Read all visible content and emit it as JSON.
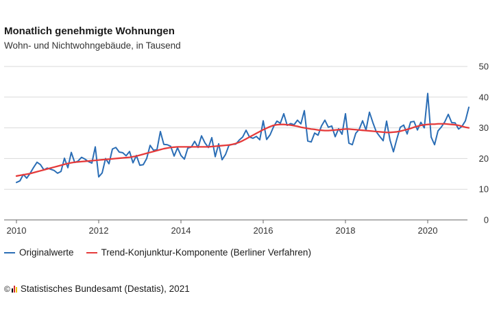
{
  "header": {
    "title": "Monatlich genehmigte Wohnungen",
    "subtitle": "Wohn- und Nichtwohngebäude, in Tausend"
  },
  "legend": {
    "items": [
      {
        "label": "Originalwerte",
        "color": "#2a6db5"
      },
      {
        "label": "Trend-Konjunktur-Komponente (Berliner Verfahren)",
        "color": "#e53a3a"
      }
    ]
  },
  "source": {
    "copyright": "©",
    "text": "Statistisches Bundesamt (Destatis), 2021",
    "logo_colors": [
      "#000000",
      "#d62b2b",
      "#f0c400"
    ]
  },
  "chart_data": {
    "type": "line",
    "title": "Monatlich genehmigte Wohnungen",
    "subtitle": "Wohn- und Nichtwohngebäude, in Tausend",
    "xlabel": "",
    "ylabel": "",
    "xlim": [
      2009.96,
      2020.96
    ],
    "ylim": [
      0,
      50
    ],
    "x_ticks": [
      2010,
      2012,
      2014,
      2016,
      2018,
      2020
    ],
    "y_ticks": [
      0,
      10,
      20,
      30,
      40,
      50
    ],
    "y_axis_side": "right",
    "grid": "horizontal",
    "x_start": 2010.0,
    "x_step_months": 1,
    "series": [
      {
        "name": "Originalwerte",
        "color": "#2a6db5",
        "values": [
          12.2,
          12.7,
          14.8,
          13.6,
          15.2,
          17.1,
          18.8,
          18.0,
          16.3,
          16.9,
          16.5,
          16.1,
          15.2,
          15.8,
          20.1,
          17.0,
          22.0,
          18.7,
          19.2,
          20.4,
          19.8,
          19.0,
          18.5,
          23.8,
          14.0,
          15.3,
          20.0,
          18.3,
          23.1,
          23.6,
          22.1,
          21.9,
          20.9,
          22.3,
          18.6,
          21.0,
          17.8,
          18.0,
          20.0,
          24.3,
          22.7,
          22.9,
          28.8,
          24.6,
          24.5,
          24.0,
          20.8,
          23.5,
          21.0,
          19.8,
          23.4,
          23.7,
          25.6,
          23.6,
          27.4,
          25.1,
          23.6,
          26.8,
          20.6,
          24.8,
          19.6,
          21.3,
          24.3,
          24.6,
          24.7,
          26.0,
          27.0,
          29.2,
          27.0,
          26.6,
          27.2,
          26.1,
          32.3,
          26.2,
          27.7,
          30.3,
          32.2,
          31.5,
          34.6,
          30.8,
          31.4,
          31.0,
          32.5,
          31.3,
          35.6,
          25.7,
          25.4,
          28.3,
          27.6,
          30.6,
          32.5,
          30.2,
          30.6,
          27.1,
          29.7,
          27.9,
          34.6,
          25.0,
          24.5,
          28.2,
          29.5,
          32.3,
          29.3,
          35.1,
          31.7,
          28.7,
          27.2,
          25.8,
          32.2,
          26.0,
          22.2,
          26.4,
          30.2,
          30.9,
          28.0,
          31.9,
          32.1,
          29.3,
          31.8,
          30.0,
          41.2,
          27.0,
          24.5,
          29.0,
          30.3,
          32.0,
          34.4,
          31.7,
          31.6,
          29.6,
          30.5,
          32.3,
          36.7
        ]
      },
      {
        "name": "Trend-Konjunktur-Komponente (Berliner Verfahren)",
        "color": "#e53a3a",
        "values": [
          14.3,
          14.5,
          14.7,
          14.9,
          15.1,
          15.4,
          15.7,
          16.0,
          16.3,
          16.6,
          16.9,
          17.2,
          17.5,
          17.8,
          18.1,
          18.4,
          18.6,
          18.8,
          18.9,
          19.0,
          19.1,
          19.2,
          19.3,
          19.4,
          19.5,
          19.6,
          19.7,
          19.8,
          19.9,
          20.0,
          20.1,
          20.2,
          20.3,
          20.4,
          20.6,
          20.8,
          21.1,
          21.4,
          21.7,
          22.0,
          22.3,
          22.6,
          22.9,
          23.2,
          23.4,
          23.6,
          23.7,
          23.8,
          23.8,
          23.8,
          23.8,
          23.8,
          23.8,
          23.8,
          23.8,
          23.8,
          23.8,
          23.9,
          24.0,
          24.1,
          24.2,
          24.3,
          24.4,
          24.6,
          24.9,
          25.3,
          25.8,
          26.4,
          27.0,
          27.6,
          28.2,
          28.8,
          29.4,
          29.9,
          30.4,
          30.8,
          31.0,
          31.1,
          31.1,
          31.0,
          30.9,
          30.7,
          30.5,
          30.2,
          30.0,
          29.8,
          29.6,
          29.5,
          29.3,
          29.2,
          29.1,
          29.1,
          29.2,
          29.3,
          29.4,
          29.5,
          29.6,
          29.6,
          29.5,
          29.4,
          29.3,
          29.2,
          29.1,
          29.0,
          28.9,
          28.8,
          28.7,
          28.6,
          28.5,
          28.5,
          28.6,
          28.7,
          28.9,
          29.2,
          29.5,
          29.8,
          30.2,
          30.5,
          30.8,
          31.0,
          31.1,
          31.2,
          31.2,
          31.3,
          31.3,
          31.3,
          31.2,
          31.1,
          31.0,
          30.8,
          30.5,
          30.2,
          30.0
        ]
      }
    ]
  }
}
